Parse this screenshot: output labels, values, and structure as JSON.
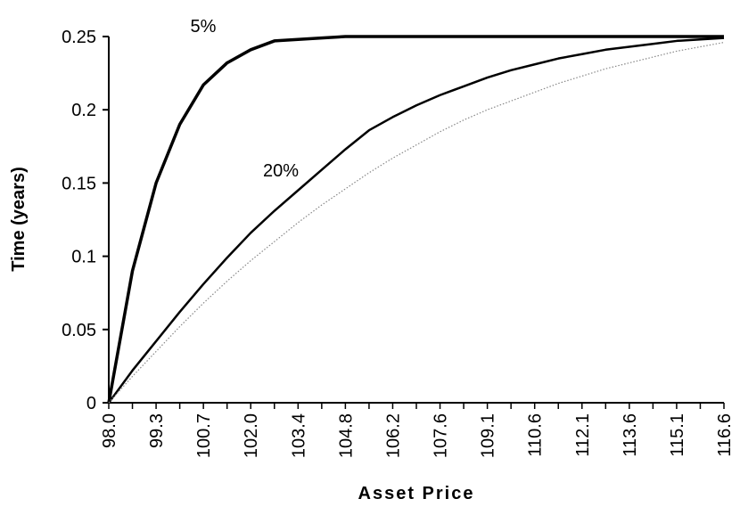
{
  "chart_data": {
    "type": "line",
    "xlabel": "Asset Price",
    "ylabel": "Time (years)",
    "categories": [
      "98.0",
      null,
      "99.3",
      null,
      "100.7",
      null,
      "102.0",
      null,
      "103.4",
      null,
      "104.8",
      null,
      "106.2",
      null,
      "107.6",
      null,
      "109.1",
      null,
      "110.6",
      null,
      "112.1",
      null,
      "113.6",
      null,
      "115.1",
      null,
      "116.6"
    ],
    "ylim": [
      0,
      0.25
    ],
    "yticks": [
      0,
      0.05,
      0.1,
      0.15,
      0.2,
      0.25
    ],
    "series": [
      {
        "name": "5%",
        "color": "#000000",
        "linewidth": 3.5,
        "style": "solid",
        "values": [
          0,
          0.09,
          0.15,
          0.19,
          0.217,
          0.232,
          0.241,
          0.247,
          0.248,
          0.249,
          0.25,
          0.25,
          0.25,
          0.25,
          0.25,
          0.25,
          0.25,
          0.25,
          0.25,
          0.25,
          0.25,
          0.25,
          0.25,
          0.25,
          0.25,
          0.25,
          0.25
        ]
      },
      {
        "name": "20%",
        "color": "#000000",
        "linewidth": 2.5,
        "style": "solid",
        "values": [
          0,
          0.022,
          0.042,
          0.062,
          0.081,
          0.099,
          0.116,
          0.131,
          0.145,
          0.159,
          0.173,
          0.186,
          0.195,
          0.203,
          0.21,
          0.216,
          0.222,
          0.227,
          0.231,
          0.235,
          0.238,
          0.241,
          0.243,
          0.245,
          0.247,
          0.248,
          0.249
        ]
      },
      {
        "color": "#888888",
        "linewidth": 1.2,
        "style": "dotted",
        "values": [
          0,
          0.018,
          0.035,
          0.052,
          0.068,
          0.083,
          0.097,
          0.11,
          0.123,
          0.135,
          0.146,
          0.157,
          0.167,
          0.176,
          0.185,
          0.193,
          0.2,
          0.206,
          0.212,
          0.218,
          0.223,
          0.228,
          0.232,
          0.236,
          0.24,
          0.243,
          0.246
        ]
      }
    ]
  }
}
